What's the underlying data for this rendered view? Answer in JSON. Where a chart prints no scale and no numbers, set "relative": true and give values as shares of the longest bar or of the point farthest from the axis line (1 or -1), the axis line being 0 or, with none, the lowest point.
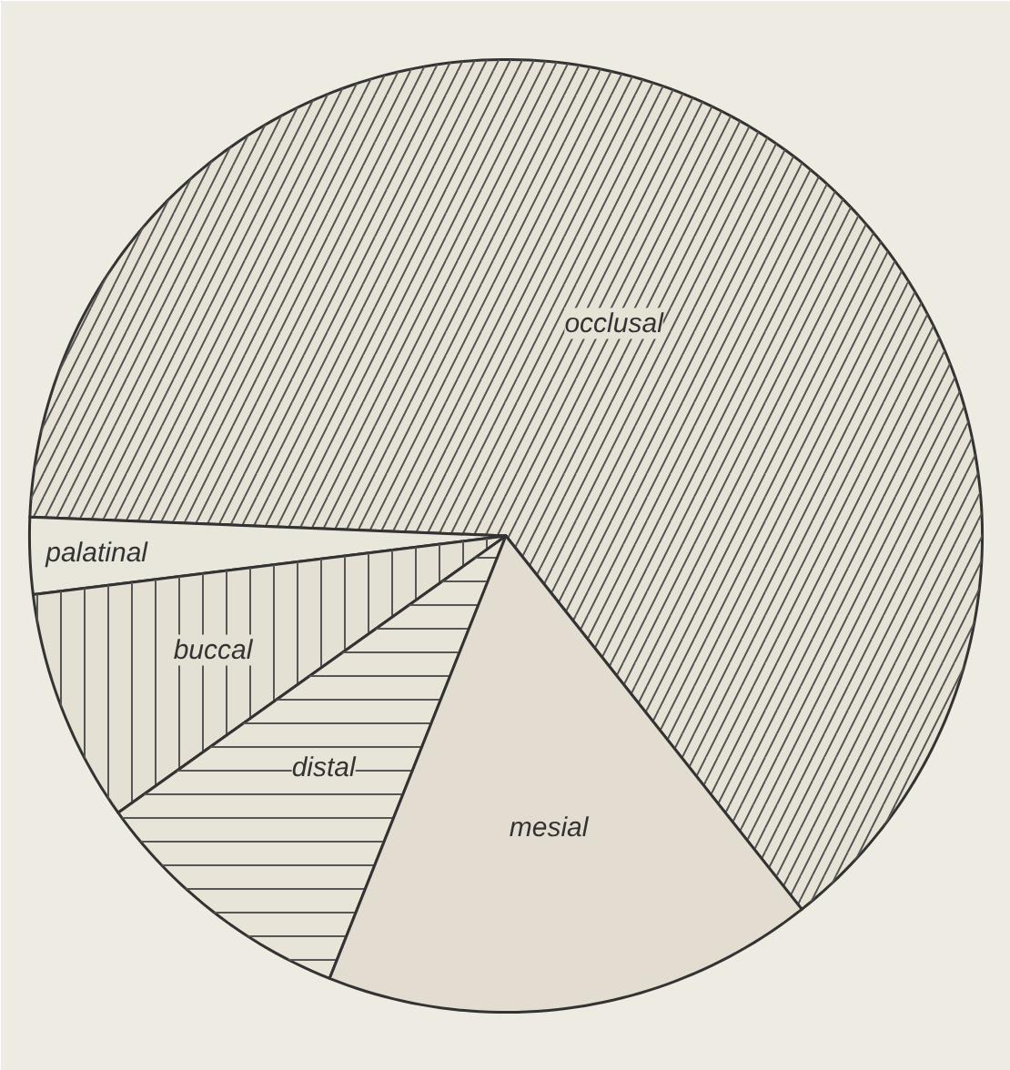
{
  "chart_data": {
    "type": "pie",
    "relative": true,
    "categories": [
      "occlusal",
      "palatinal",
      "buccal",
      "distal",
      "mesial"
    ],
    "values": [
      63.7,
      2.6,
      7.9,
      9.1,
      16.7
    ],
    "colors": [
      "#e6e2d6",
      "#e9e6db",
      "#e4e0d3",
      "#e8e4d8",
      "#e2ddd0"
    ]
  }
}
